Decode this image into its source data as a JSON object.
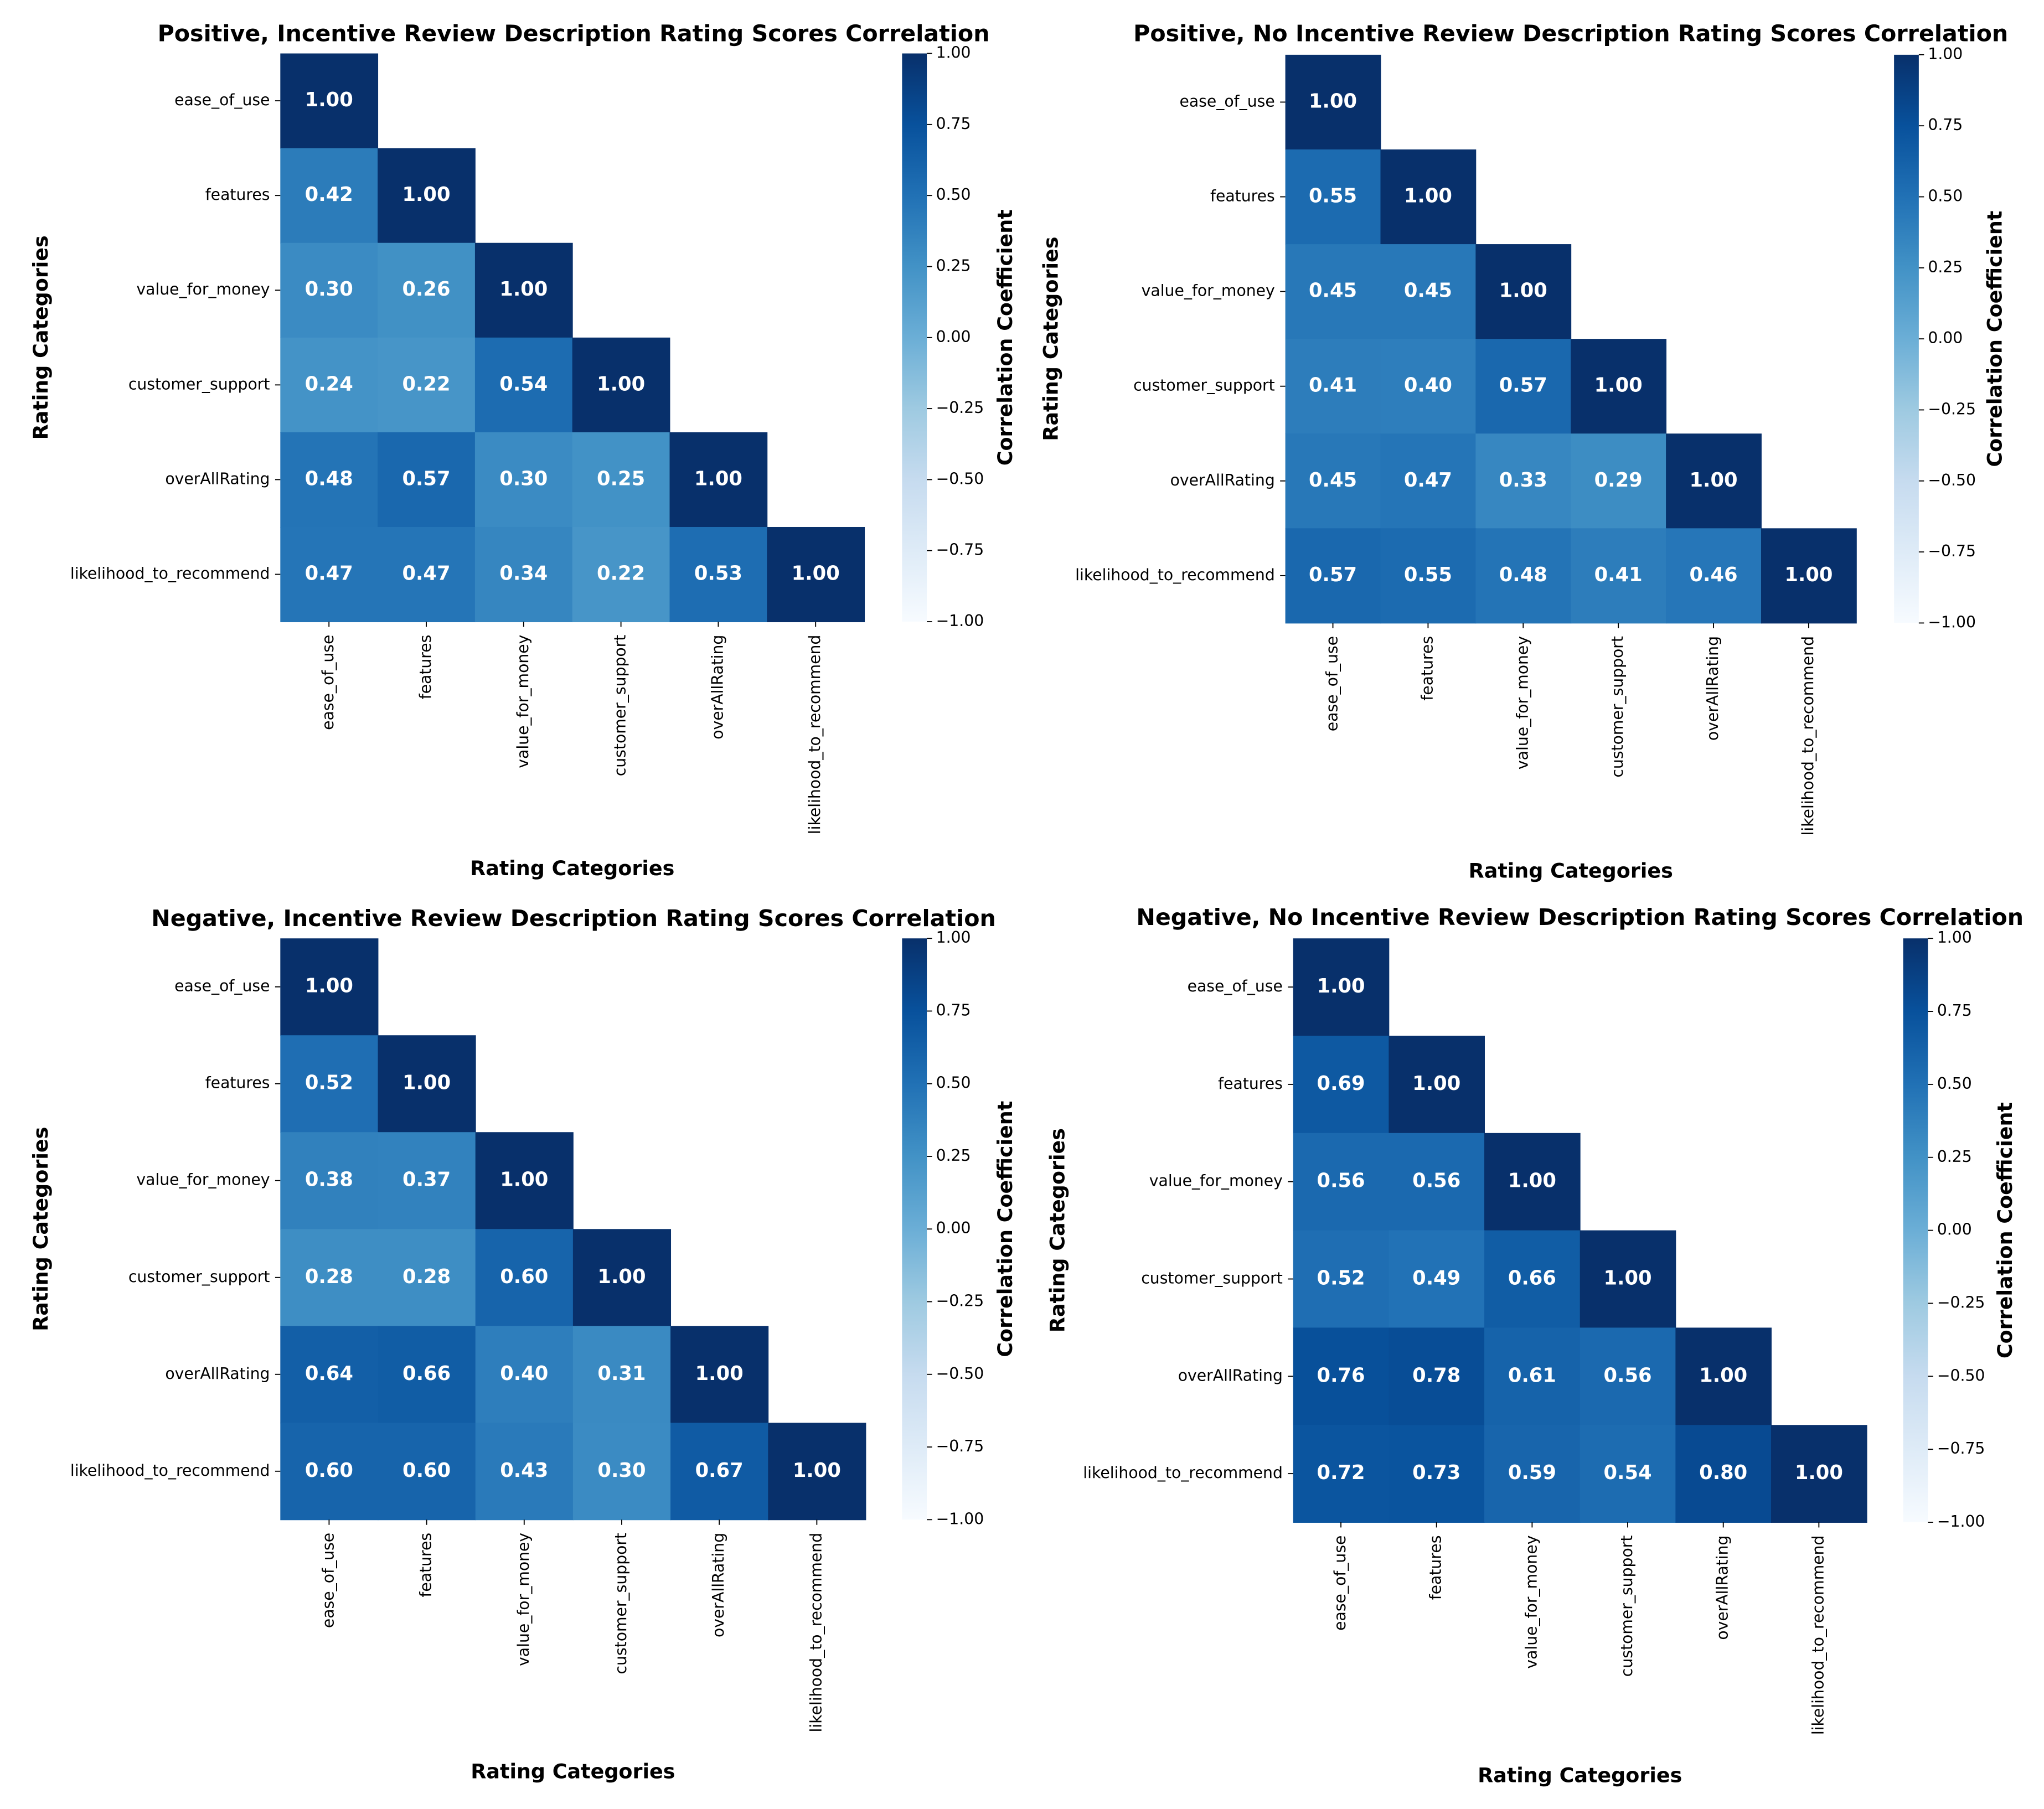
{
  "chart_data": [
    {
      "type": "heatmap",
      "title": "Positive, Incentive Review Description Rating Scores Correlation",
      "xlabel": "Rating Categories",
      "ylabel": "Rating Categories",
      "colorbar_label": "Correlation Coefficient",
      "xcategories": [
        "ease_of_use",
        "features",
        "value_for_money",
        "customer_support",
        "overAllRating",
        "likelihood_to_recommend"
      ],
      "ycategories": [
        "ease_of_use",
        "features",
        "value_for_money",
        "customer_support",
        "overAllRating",
        "likelihood_to_recommend"
      ],
      "values": [
        [
          1.0,
          null,
          null,
          null,
          null,
          null
        ],
        [
          0.42,
          1.0,
          null,
          null,
          null,
          null
        ],
        [
          0.3,
          0.26,
          1.0,
          null,
          null,
          null
        ],
        [
          0.24,
          0.22,
          0.54,
          1.0,
          null,
          null
        ],
        [
          0.48,
          0.57,
          0.3,
          0.25,
          1.0,
          null
        ],
        [
          0.47,
          0.47,
          0.34,
          0.22,
          0.53,
          1.0
        ]
      ],
      "value_labels": [
        [
          "1.00",
          null,
          null,
          null,
          null,
          null
        ],
        [
          "0.42",
          "1.00",
          null,
          null,
          null,
          null
        ],
        [
          "0.30",
          "0.26",
          "1.00",
          null,
          null,
          null
        ],
        [
          "0.24",
          "0.22",
          "0.54",
          "1.00",
          null,
          null
        ],
        [
          "0.48",
          "0.57",
          "0.30",
          "0.25",
          "1.00",
          null
        ],
        [
          "0.47",
          "0.47",
          "0.34",
          "0.22",
          "0.53",
          "1.00"
        ]
      ],
      "clim": [
        -1,
        1
      ],
      "cticks": [
        {
          "value": 1,
          "label": "1.00"
        },
        {
          "value": 0.75,
          "label": "0.75"
        },
        {
          "value": 0.5,
          "label": "0.50"
        },
        {
          "value": 0.25,
          "label": "0.25"
        },
        {
          "value": 0,
          "label": "0.00"
        },
        {
          "value": -0.25,
          "label": "−0.25"
        },
        {
          "value": -0.5,
          "label": "−0.50"
        },
        {
          "value": -0.75,
          "label": "−0.75"
        },
        {
          "value": -1,
          "label": "−1.00"
        }
      ],
      "colormap": [
        "#f7fbff",
        "#deebf7",
        "#c6dbef",
        "#9ecae1",
        "#6baed6",
        "#4292c6",
        "#2171b5",
        "#08519c",
        "#08306b"
      ]
    },
    {
      "type": "heatmap",
      "title": "Positive, No Incentive Review Description Rating Scores Correlation",
      "xlabel": "Rating Categories",
      "ylabel": "Rating Categories",
      "colorbar_label": "Correlation Coefficient",
      "xcategories": [
        "ease_of_use",
        "features",
        "value_for_money",
        "customer_support",
        "overAllRating",
        "likelihood_to_recommend"
      ],
      "ycategories": [
        "ease_of_use",
        "features",
        "value_for_money",
        "customer_support",
        "overAllRating",
        "likelihood_to_recommend"
      ],
      "values": [
        [
          1.0,
          null,
          null,
          null,
          null,
          null
        ],
        [
          0.55,
          1.0,
          null,
          null,
          null,
          null
        ],
        [
          0.45,
          0.45,
          1.0,
          null,
          null,
          null
        ],
        [
          0.41,
          0.4,
          0.57,
          1.0,
          null,
          null
        ],
        [
          0.45,
          0.47,
          0.33,
          0.29,
          1.0,
          null
        ],
        [
          0.57,
          0.55,
          0.48,
          0.41,
          0.46,
          1.0
        ]
      ],
      "value_labels": [
        [
          "1.00",
          null,
          null,
          null,
          null,
          null
        ],
        [
          "0.55",
          "1.00",
          null,
          null,
          null,
          null
        ],
        [
          "0.45",
          "0.45",
          "1.00",
          null,
          null,
          null
        ],
        [
          "0.41",
          "0.40",
          "0.57",
          "1.00",
          null,
          null
        ],
        [
          "0.45",
          "0.47",
          "0.33",
          "0.29",
          "1.00",
          null
        ],
        [
          "0.57",
          "0.55",
          "0.48",
          "0.41",
          "0.46",
          "1.00"
        ]
      ],
      "clim": [
        -1,
        1
      ],
      "cticks": [
        {
          "value": 1,
          "label": "1.00"
        },
        {
          "value": 0.75,
          "label": "0.75"
        },
        {
          "value": 0.5,
          "label": "0.50"
        },
        {
          "value": 0.25,
          "label": "0.25"
        },
        {
          "value": 0,
          "label": "0.00"
        },
        {
          "value": -0.25,
          "label": "−0.25"
        },
        {
          "value": -0.5,
          "label": "−0.50"
        },
        {
          "value": -0.75,
          "label": "−0.75"
        },
        {
          "value": -1,
          "label": "−1.00"
        }
      ],
      "colormap": [
        "#f7fbff",
        "#deebf7",
        "#c6dbef",
        "#9ecae1",
        "#6baed6",
        "#4292c6",
        "#2171b5",
        "#08519c",
        "#08306b"
      ]
    },
    {
      "type": "heatmap",
      "title": "Negative, Incentive Review Description Rating Scores Correlation",
      "xlabel": "Rating Categories",
      "ylabel": "Rating Categories",
      "colorbar_label": "Correlation Coefficient",
      "xcategories": [
        "ease_of_use",
        "features",
        "value_for_money",
        "customer_support",
        "overAllRating",
        "likelihood_to_recommend"
      ],
      "ycategories": [
        "ease_of_use",
        "features",
        "value_for_money",
        "customer_support",
        "overAllRating",
        "likelihood_to_recommend"
      ],
      "values": [
        [
          1.0,
          null,
          null,
          null,
          null,
          null
        ],
        [
          0.52,
          1.0,
          null,
          null,
          null,
          null
        ],
        [
          0.38,
          0.37,
          1.0,
          null,
          null,
          null
        ],
        [
          0.28,
          0.28,
          0.6,
          1.0,
          null,
          null
        ],
        [
          0.64,
          0.66,
          0.4,
          0.31,
          1.0,
          null
        ],
        [
          0.6,
          0.6,
          0.43,
          0.3,
          0.67,
          1.0
        ]
      ],
      "value_labels": [
        [
          "1.00",
          null,
          null,
          null,
          null,
          null
        ],
        [
          "0.52",
          "1.00",
          null,
          null,
          null,
          null
        ],
        [
          "0.38",
          "0.37",
          "1.00",
          null,
          null,
          null
        ],
        [
          "0.28",
          "0.28",
          "0.60",
          "1.00",
          null,
          null
        ],
        [
          "0.64",
          "0.66",
          "0.40",
          "0.31",
          "1.00",
          null
        ],
        [
          "0.60",
          "0.60",
          "0.43",
          "0.30",
          "0.67",
          "1.00"
        ]
      ],
      "clim": [
        -1,
        1
      ],
      "cticks": [
        {
          "value": 1,
          "label": "1.00"
        },
        {
          "value": 0.75,
          "label": "0.75"
        },
        {
          "value": 0.5,
          "label": "0.50"
        },
        {
          "value": 0.25,
          "label": "0.25"
        },
        {
          "value": 0,
          "label": "0.00"
        },
        {
          "value": -0.25,
          "label": "−0.25"
        },
        {
          "value": -0.5,
          "label": "−0.50"
        },
        {
          "value": -0.75,
          "label": "−0.75"
        },
        {
          "value": -1,
          "label": "−1.00"
        }
      ],
      "colormap": [
        "#f7fbff",
        "#deebf7",
        "#c6dbef",
        "#9ecae1",
        "#6baed6",
        "#4292c6",
        "#2171b5",
        "#08519c",
        "#08306b"
      ]
    },
    {
      "type": "heatmap",
      "title": "Negative, No Incentive Review Description Rating Scores Correlation",
      "xlabel": "Rating Categories",
      "ylabel": "Rating Categories",
      "colorbar_label": "Correlation Coefficient",
      "xcategories": [
        "ease_of_use",
        "features",
        "value_for_money",
        "customer_support",
        "overAllRating",
        "likelihood_to_recommend"
      ],
      "ycategories": [
        "ease_of_use",
        "features",
        "value_for_money",
        "customer_support",
        "overAllRating",
        "likelihood_to_recommend"
      ],
      "values": [
        [
          1.0,
          null,
          null,
          null,
          null,
          null
        ],
        [
          0.69,
          1.0,
          null,
          null,
          null,
          null
        ],
        [
          0.56,
          0.56,
          1.0,
          null,
          null,
          null
        ],
        [
          0.52,
          0.49,
          0.66,
          1.0,
          null,
          null
        ],
        [
          0.76,
          0.78,
          0.61,
          0.56,
          1.0,
          null
        ],
        [
          0.72,
          0.73,
          0.59,
          0.54,
          0.8,
          1.0
        ]
      ],
      "value_labels": [
        [
          "1.00",
          null,
          null,
          null,
          null,
          null
        ],
        [
          "0.69",
          "1.00",
          null,
          null,
          null,
          null
        ],
        [
          "0.56",
          "0.56",
          "1.00",
          null,
          null,
          null
        ],
        [
          "0.52",
          "0.49",
          "0.66",
          "1.00",
          null,
          null
        ],
        [
          "0.76",
          "0.78",
          "0.61",
          "0.56",
          "1.00",
          null
        ],
        [
          "0.72",
          "0.73",
          "0.59",
          "0.54",
          "0.80",
          "1.00"
        ]
      ],
      "clim": [
        -1,
        1
      ],
      "cticks": [
        {
          "value": 1,
          "label": "1.00"
        },
        {
          "value": 0.75,
          "label": "0.75"
        },
        {
          "value": 0.5,
          "label": "0.50"
        },
        {
          "value": 0.25,
          "label": "0.25"
        },
        {
          "value": 0,
          "label": "0.00"
        },
        {
          "value": -0.25,
          "label": "−0.25"
        },
        {
          "value": -0.5,
          "label": "−0.50"
        },
        {
          "value": -0.75,
          "label": "−0.75"
        },
        {
          "value": -1,
          "label": "−1.00"
        }
      ],
      "colormap": [
        "#f7fbff",
        "#deebf7",
        "#c6dbef",
        "#9ecae1",
        "#6baed6",
        "#4292c6",
        "#2171b5",
        "#08519c",
        "#08306b"
      ]
    }
  ]
}
